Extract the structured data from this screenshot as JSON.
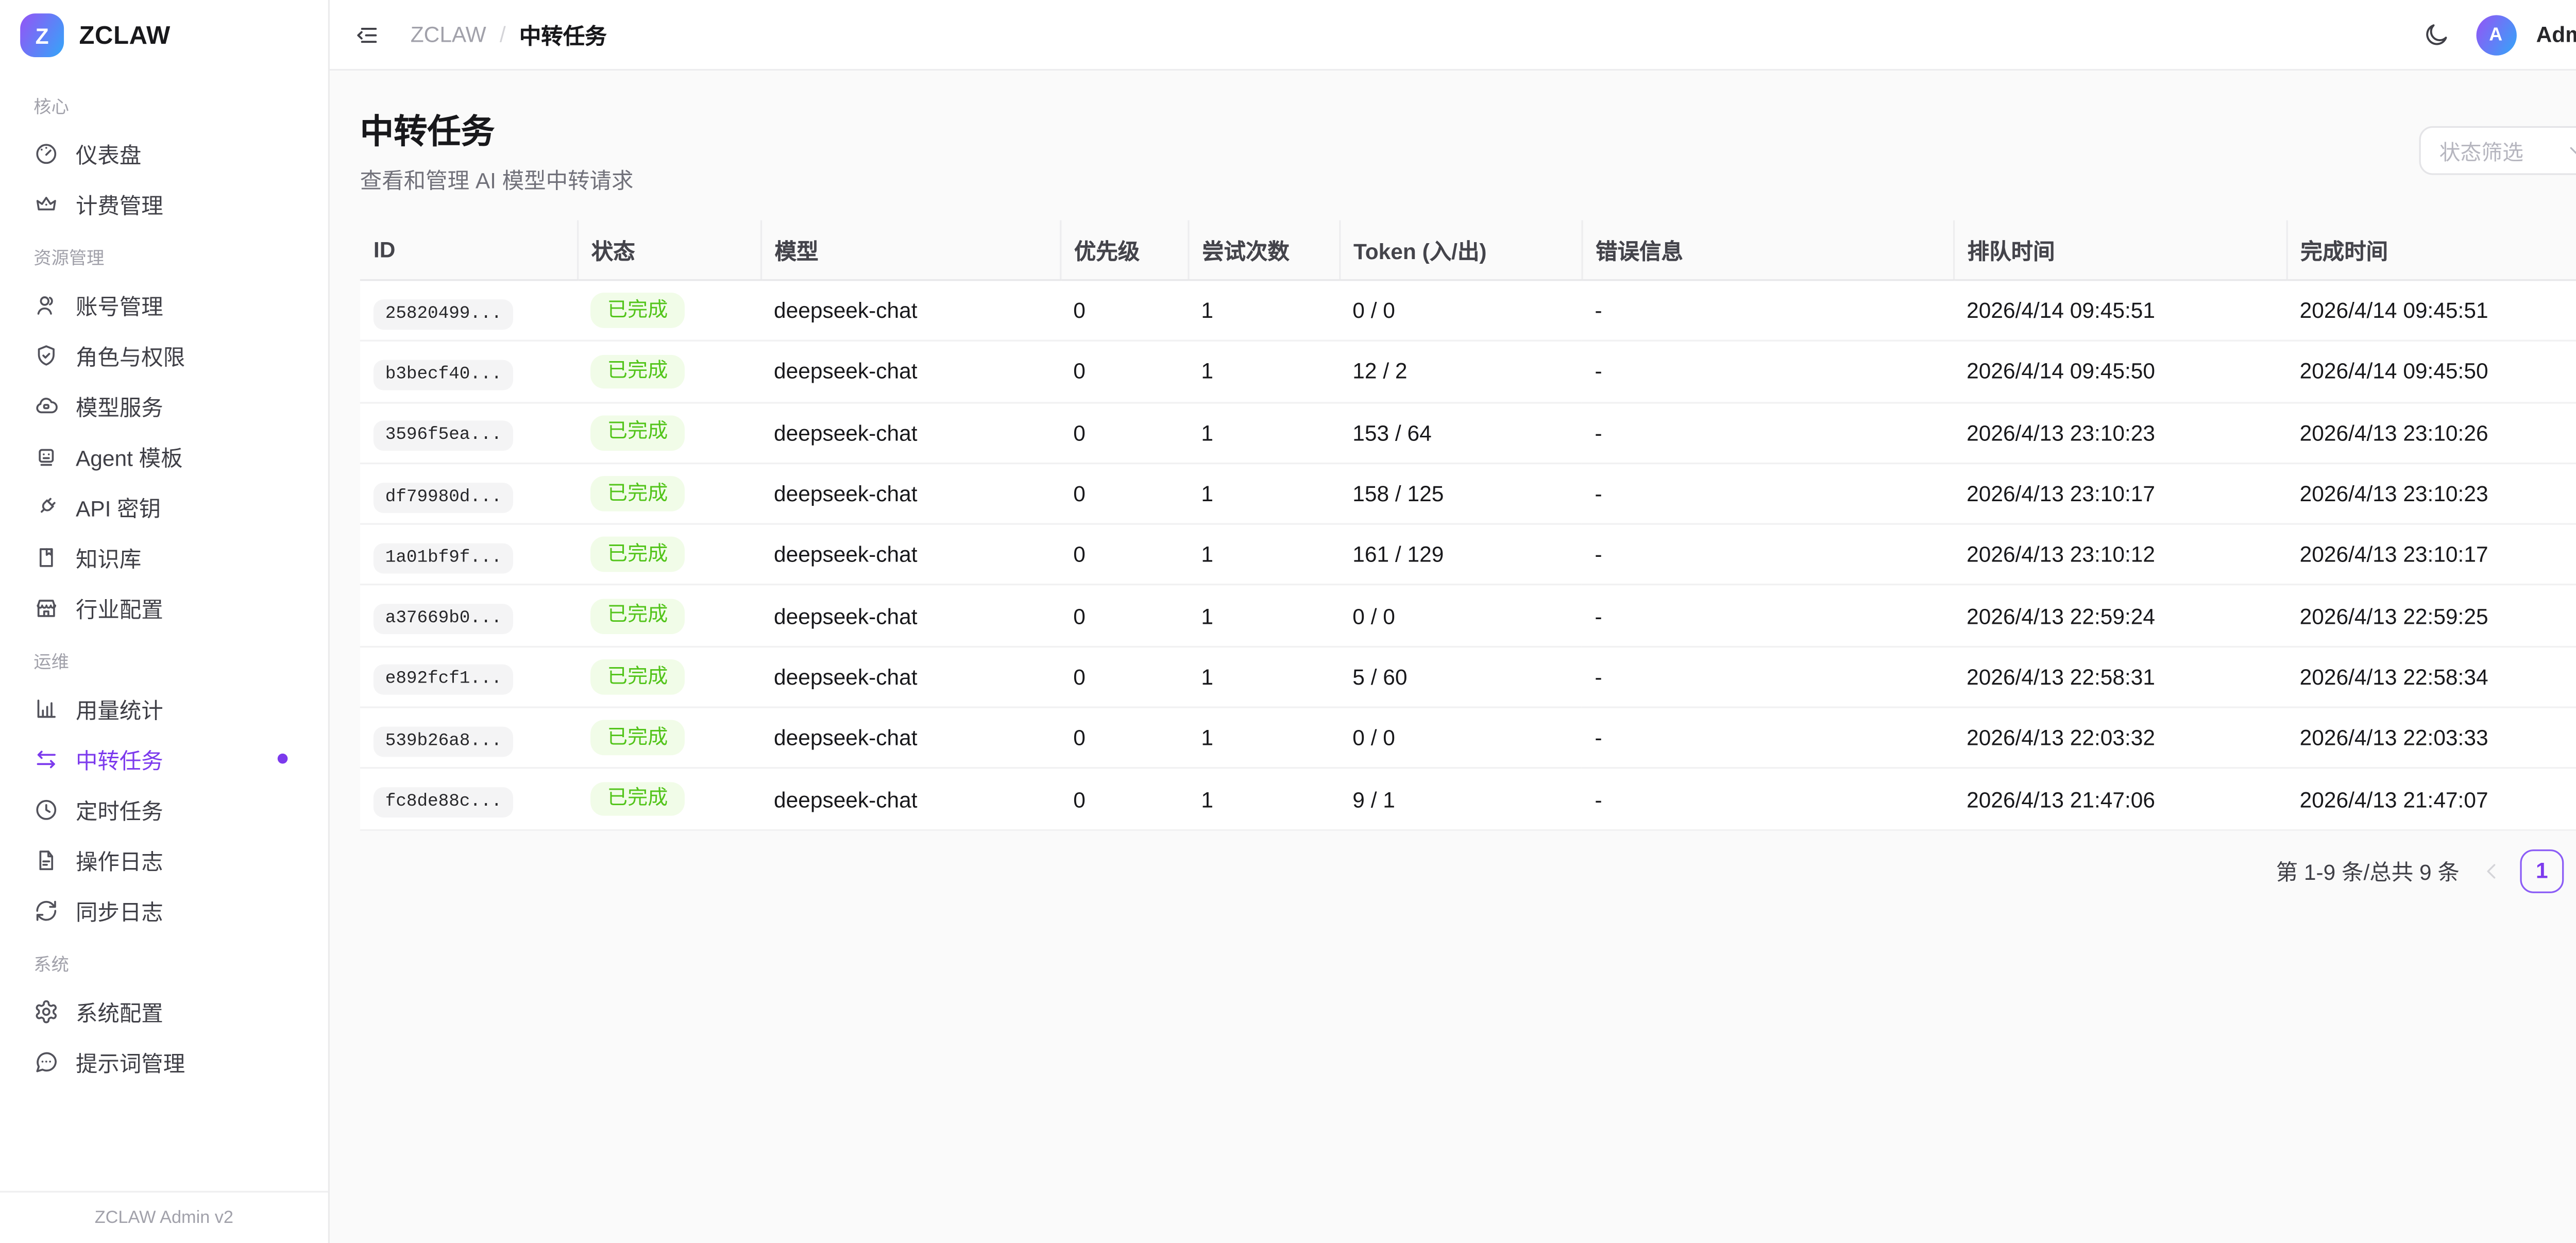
{
  "brand": {
    "logo_letter": "Z",
    "name": "ZCLAW",
    "footer": "ZCLAW Admin v2"
  },
  "header": {
    "breadcrumb_root": "ZCLAW",
    "breadcrumb_sep": "/",
    "breadcrumb_current": "中转任务",
    "user_initial": "A",
    "user_name": "Admin"
  },
  "sidebar": {
    "sections": [
      {
        "label": "核心",
        "items": [
          {
            "label": "仪表盘",
            "icon": "gauge-icon"
          },
          {
            "label": "计费管理",
            "icon": "crown-icon"
          }
        ]
      },
      {
        "label": "资源管理",
        "items": [
          {
            "label": "账号管理",
            "icon": "users-icon"
          },
          {
            "label": "角色与权限",
            "icon": "shield-check-icon"
          },
          {
            "label": "模型服务",
            "icon": "cloud-icon"
          },
          {
            "label": "Agent 模板",
            "icon": "bot-icon"
          },
          {
            "label": "API 密钥",
            "icon": "plug-icon"
          },
          {
            "label": "知识库",
            "icon": "book-marked-icon"
          },
          {
            "label": "行业配置",
            "icon": "store-icon"
          }
        ]
      },
      {
        "label": "运维",
        "items": [
          {
            "label": "用量统计",
            "icon": "bar-chart-icon"
          },
          {
            "label": "中转任务",
            "icon": "exchange-icon",
            "active": true
          },
          {
            "label": "定时任务",
            "icon": "clock-icon"
          },
          {
            "label": "操作日志",
            "icon": "file-text-icon"
          },
          {
            "label": "同步日志",
            "icon": "refresh-icon"
          }
        ]
      },
      {
        "label": "系统",
        "items": [
          {
            "label": "系统配置",
            "icon": "gear-icon"
          },
          {
            "label": "提示词管理",
            "icon": "message-dots-icon"
          }
        ]
      }
    ]
  },
  "page": {
    "title": "中转任务",
    "subtitle": "查看和管理 AI 模型中转请求",
    "filter_placeholder": "状态筛选"
  },
  "table": {
    "columns": [
      "ID",
      "状态",
      "模型",
      "优先级",
      "尝试次数",
      "Token (入/出)",
      "错误信息",
      "排队时间",
      "完成时间"
    ],
    "rows": [
      {
        "id": "25820499...",
        "status": "已完成",
        "model": "deepseek-chat",
        "priority": "0",
        "attempts": "1",
        "tokens": "0 / 0",
        "error": "-",
        "queued_at": "2026/4/14 09:45:51",
        "completed_at": "2026/4/14 09:45:51"
      },
      {
        "id": "b3becf40...",
        "status": "已完成",
        "model": "deepseek-chat",
        "priority": "0",
        "attempts": "1",
        "tokens": "12 / 2",
        "error": "-",
        "queued_at": "2026/4/14 09:45:50",
        "completed_at": "2026/4/14 09:45:50"
      },
      {
        "id": "3596f5ea...",
        "status": "已完成",
        "model": "deepseek-chat",
        "priority": "0",
        "attempts": "1",
        "tokens": "153 / 64",
        "error": "-",
        "queued_at": "2026/4/13 23:10:23",
        "completed_at": "2026/4/13 23:10:26"
      },
      {
        "id": "df79980d...",
        "status": "已完成",
        "model": "deepseek-chat",
        "priority": "0",
        "attempts": "1",
        "tokens": "158 / 125",
        "error": "-",
        "queued_at": "2026/4/13 23:10:17",
        "completed_at": "2026/4/13 23:10:23"
      },
      {
        "id": "1a01bf9f...",
        "status": "已完成",
        "model": "deepseek-chat",
        "priority": "0",
        "attempts": "1",
        "tokens": "161 / 129",
        "error": "-",
        "queued_at": "2026/4/13 23:10:12",
        "completed_at": "2026/4/13 23:10:17"
      },
      {
        "id": "a37669b0...",
        "status": "已完成",
        "model": "deepseek-chat",
        "priority": "0",
        "attempts": "1",
        "tokens": "0 / 0",
        "error": "-",
        "queued_at": "2026/4/13 22:59:24",
        "completed_at": "2026/4/13 22:59:25"
      },
      {
        "id": "e892fcf1...",
        "status": "已完成",
        "model": "deepseek-chat",
        "priority": "0",
        "attempts": "1",
        "tokens": "5 / 60",
        "error": "-",
        "queued_at": "2026/4/13 22:58:31",
        "completed_at": "2026/4/13 22:58:34"
      },
      {
        "id": "539b26a8...",
        "status": "已完成",
        "model": "deepseek-chat",
        "priority": "0",
        "attempts": "1",
        "tokens": "0 / 0",
        "error": "-",
        "queued_at": "2026/4/13 22:03:32",
        "completed_at": "2026/4/13 22:03:33"
      },
      {
        "id": "fc8de88c...",
        "status": "已完成",
        "model": "deepseek-chat",
        "priority": "0",
        "attempts": "1",
        "tokens": "9 / 1",
        "error": "-",
        "queued_at": "2026/4/13 21:47:06",
        "completed_at": "2026/4/13 21:47:07"
      }
    ]
  },
  "pagination": {
    "summary": "第 1-9 条/总共 9 条",
    "current_page": "1"
  },
  "colors": {
    "accent": "#7c3aed",
    "success_text": "#52c41a",
    "success_bg": "#f1fce8"
  }
}
